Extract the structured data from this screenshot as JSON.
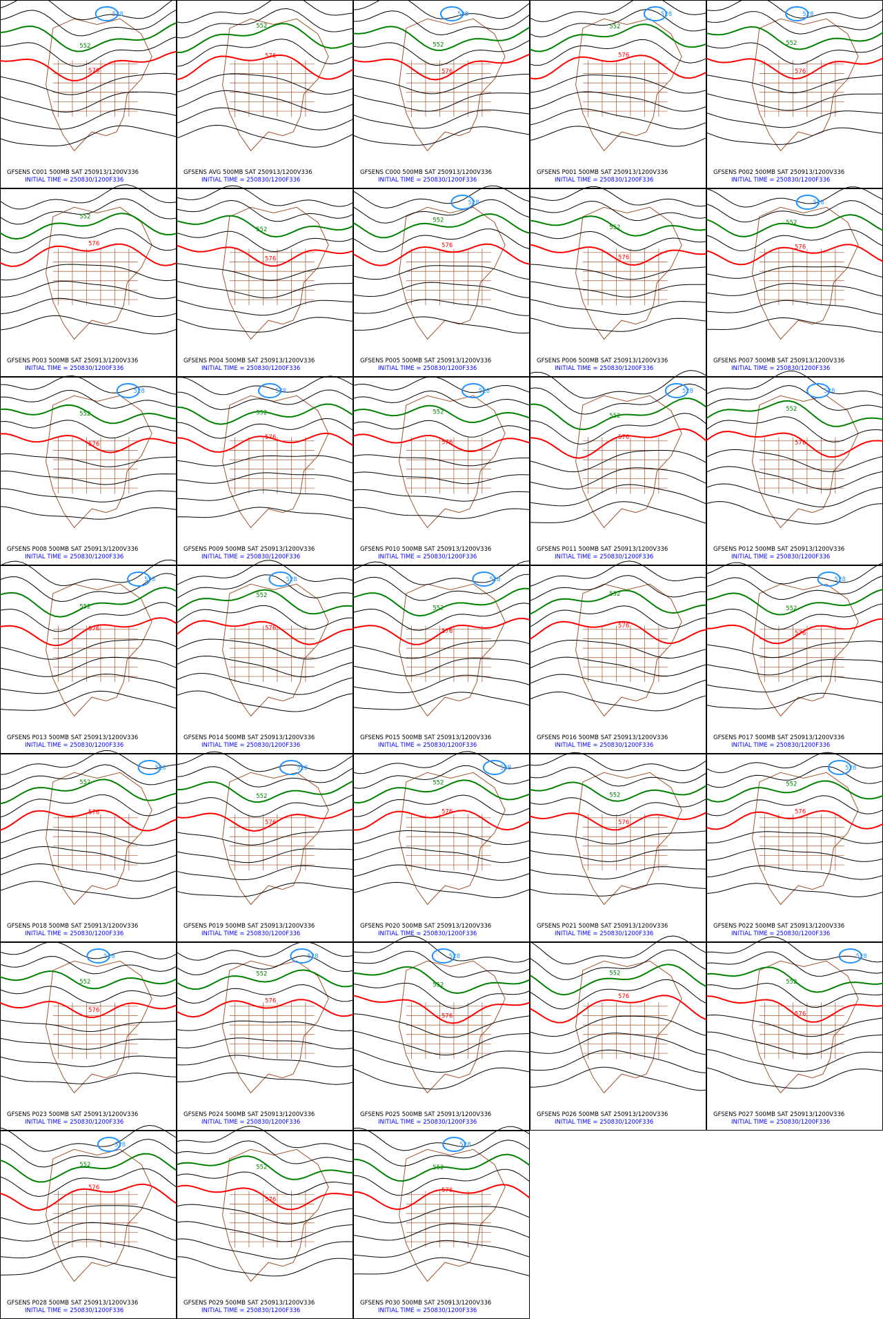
{
  "panels": [
    {
      "title": "GFSENS C001 500MB SAT 250913/1200V336",
      "initial": "INITIAL TIME = 250830/1200F336",
      "contour_labels": [
        "552",
        "576",
        "528"
      ]
    },
    {
      "title": "GFSENS AVG 500MB SAT 250913/1200V336",
      "initial": "INITIAL TIME = 250830/1200F336",
      "contour_labels": [
        "552",
        "576"
      ]
    },
    {
      "title": "GFSENS C000 500MB SAT 250913/1200V336",
      "initial": "INITIAL TIME = 250830/1200F336",
      "contour_labels": [
        "552",
        "576",
        "528"
      ]
    },
    {
      "title": "GFSENS P001 500MB SAT 250913/1200V336",
      "initial": "INITIAL TIME = 250830/1200F336",
      "contour_labels": [
        "552",
        "576",
        "528"
      ]
    },
    {
      "title": "GFSENS P002 500MB SAT 250913/1200V336",
      "initial": "INITIAL TIME = 250830/1200F336",
      "contour_labels": [
        "552",
        "576",
        "528"
      ]
    },
    {
      "title": "GFSENS P003 500MB SAT 250913/1200V336",
      "initial": "INITIAL TIME = 250830/1200F336",
      "contour_labels": [
        "552",
        "576"
      ]
    },
    {
      "title": "GFSENS P004 500MB SAT 250913/1200V336",
      "initial": "INITIAL TIME = 250830/1200F336",
      "contour_labels": [
        "552",
        "576"
      ]
    },
    {
      "title": "GFSENS P005 500MB SAT 250913/1200V336",
      "initial": "INITIAL TIME = 250830/1200F336",
      "contour_labels": [
        "552",
        "576",
        "528"
      ]
    },
    {
      "title": "GFSENS P006 500MB SAT 250913/1200V336",
      "initial": "INITIAL TIME = 250830/1200F336",
      "contour_labels": [
        "552",
        "576"
      ]
    },
    {
      "title": "GFSENS P007 500MB SAT 250913/1200V336",
      "initial": "INITIAL TIME = 250830/1200F336",
      "contour_labels": [
        "552",
        "576",
        "528"
      ]
    },
    {
      "title": "GFSENS P008 500MB SAT 250913/1200V336",
      "initial": "INITIAL TIME = 250830/1200F336",
      "contour_labels": [
        "552",
        "576",
        "528"
      ]
    },
    {
      "title": "GFSENS P009 500MB SAT 250913/1200V336",
      "initial": "INITIAL TIME = 250830/1200F336",
      "contour_labels": [
        "552",
        "576",
        "528"
      ]
    },
    {
      "title": "GFSENS P010 500MB SAT 250913/1200V336",
      "initial": "INITIAL TIME = 250830/1200F336",
      "contour_labels": [
        "552",
        "576",
        "528"
      ]
    },
    {
      "title": "GFSENS P011 500MB SAT 250913/1200V336",
      "initial": "INITIAL TIME = 250830/1200F336",
      "contour_labels": [
        "552",
        "576",
        "528"
      ]
    },
    {
      "title": "GFSENS P012 500MB SAT 250913/1200V336",
      "initial": "INITIAL TIME = 250830/1200F336",
      "contour_labels": [
        "552",
        "576",
        "528"
      ]
    },
    {
      "title": "GFSENS P013 500MB SAT 250913/1200V336",
      "initial": "INITIAL TIME = 250830/1200F336",
      "contour_labels": [
        "552",
        "576",
        "528"
      ]
    },
    {
      "title": "GFSENS P014 500MB SAT 250913/1200V336",
      "initial": "INITIAL TIME = 250830/1200F336",
      "contour_labels": [
        "552",
        "576",
        "528"
      ]
    },
    {
      "title": "GFSENS P015 500MB SAT 250913/1200V336",
      "initial": "INITIAL TIME = 250830/1200F336",
      "contour_labels": [
        "552",
        "576",
        "528"
      ]
    },
    {
      "title": "GFSENS P016 500MB SAT 250913/1200V336",
      "initial": "INITIAL TIME = 250830/1200F336",
      "contour_labels": [
        "552",
        "576"
      ]
    },
    {
      "title": "GFSENS P017 500MB SAT 250913/1200V336",
      "initial": "INITIAL TIME = 250830/1200F336",
      "contour_labels": [
        "552",
        "576",
        "528"
      ]
    },
    {
      "title": "GFSENS P018 500MB SAT 250913/1200V336",
      "initial": "INITIAL TIME = 250830/1200F336",
      "contour_labels": [
        "552",
        "576",
        "528"
      ]
    },
    {
      "title": "GFSENS P019 500MB SAT 250913/1200V336",
      "initial": "INITIAL TIME = 250830/1200F336",
      "contour_labels": [
        "552",
        "576",
        "528"
      ]
    },
    {
      "title": "GFSENS P020 500MB SAT 250913/1200V336",
      "initial": "INITIAL TIME = 250830/1200F336",
      "contour_labels": [
        "552",
        "576",
        "528"
      ]
    },
    {
      "title": "GFSENS P021 500MB SAT 250913/1200V336",
      "initial": "INITIAL TIME = 250830/1200F336",
      "contour_labels": [
        "552",
        "576"
      ]
    },
    {
      "title": "GFSENS P022 500MB SAT 250913/1200V336",
      "initial": "INITIAL TIME = 250830/1200F336",
      "contour_labels": [
        "552",
        "576",
        "528"
      ]
    },
    {
      "title": "GFSENS P023 500MB SAT 250913/1200V336",
      "initial": "INITIAL TIME = 250830/1200F336",
      "contour_labels": [
        "552",
        "576",
        "528"
      ]
    },
    {
      "title": "GFSENS P024 500MB SAT 250913/1200V336",
      "initial": "INITIAL TIME = 250830/1200F336",
      "contour_labels": [
        "552",
        "576",
        "528"
      ]
    },
    {
      "title": "GFSENS P025 500MB SAT 250913/1200V336",
      "initial": "INITIAL TIME = 250830/1200F336",
      "contour_labels": [
        "552",
        "576",
        "528"
      ]
    },
    {
      "title": "GFSENS P026 500MB SAT 250913/1200V336",
      "initial": "INITIAL TIME = 250830/1200F336",
      "contour_labels": [
        "552",
        "576"
      ]
    },
    {
      "title": "GFSENS P027 500MB SAT 250913/1200V336",
      "initial": "INITIAL TIME = 250830/1200F336",
      "contour_labels": [
        "552",
        "576",
        "528"
      ]
    },
    {
      "title": "GFSENS P028 500MB SAT 250913/1200V336",
      "initial": "INITIAL TIME = 250830/1200F336",
      "contour_labels": [
        "552",
        "576",
        "528"
      ]
    },
    {
      "title": "GFSENS P029 500MB SAT 250913/1200V336",
      "initial": "INITIAL TIME = 250830/1200F336",
      "contour_labels": [
        "552",
        "576"
      ]
    },
    {
      "title": "GFSENS P030 500MB SAT 250913/1200V336",
      "initial": "INITIAL TIME = 250830/1200F336",
      "contour_labels": [
        "552",
        "576",
        "528"
      ]
    }
  ]
}
